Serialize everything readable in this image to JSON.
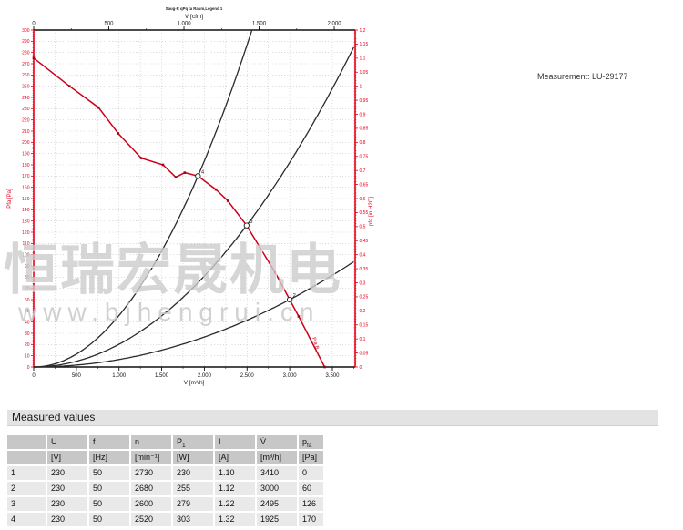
{
  "measurement_label": "Measurement: LU-29177",
  "watermark": {
    "line1": "恒瑞宏晟机电",
    "line2": "www.bjhengrui.cn"
  },
  "chart_data": {
    "type": "line",
    "title_small": "Saug-R qPq ta Raum,Legend 1",
    "curve_label": "Pfa B",
    "colors": {
      "axis_red": "#e3001b",
      "curve_red": "#cc0019",
      "marker_red": "#a50014",
      "black_curve": "#2a2a2a",
      "grid": "#b0b0b0"
    },
    "axes": {
      "top": {
        "label": "V [cfm]",
        "range": [
          0,
          2139
        ],
        "ticks": [
          0,
          500,
          1000,
          1500,
          2000
        ],
        "tick_labels": [
          "0",
          "500",
          "1.000",
          "1.500",
          "2.000"
        ],
        "minor_step": 250
      },
      "bottom": {
        "label": "V [m³/h]",
        "range": [
          0,
          3767
        ],
        "ticks": [
          0,
          500,
          1000,
          1500,
          2000,
          2500,
          3000,
          3500
        ],
        "tick_labels": [
          "0",
          "500",
          "1.000",
          "1.500",
          "2.000",
          "2.500",
          "3.000",
          "3.500"
        ],
        "minor_step": 250
      },
      "left": {
        "label": "Pfa [Pa]",
        "range": [
          0,
          300
        ],
        "step": 10,
        "minor_step": 2
      },
      "right": {
        "label": "pfa [in H2O]",
        "range": [
          0,
          1.2
        ],
        "step": 0.05,
        "minor_step": 0.01,
        "decimal_comma": true
      }
    },
    "grid": {
      "v_step": 250,
      "h_step": 10
    },
    "series": [
      {
        "name": "fan-pressure-curve",
        "type": "measured",
        "points": [
          [
            0,
            275
          ],
          [
            420,
            250
          ],
          [
            760,
            231
          ],
          [
            990,
            208
          ],
          [
            1260,
            186
          ],
          [
            1515,
            180
          ],
          [
            1665,
            169
          ],
          [
            1770,
            173
          ],
          [
            1925,
            170
          ],
          [
            2135,
            158
          ],
          [
            2275,
            148
          ],
          [
            2495,
            126
          ],
          [
            2830,
            84
          ],
          [
            3000,
            60
          ],
          [
            3105,
            45
          ],
          [
            3410,
            0
          ]
        ]
      },
      {
        "name": "system-curve-through-point-4",
        "type": "parabola",
        "through": [
          1925,
          170
        ]
      },
      {
        "name": "system-curve-through-point-3",
        "type": "parabola",
        "through": [
          2495,
          126
        ]
      },
      {
        "name": "system-curve-through-point-2",
        "type": "parabola",
        "through": [
          3000,
          60
        ]
      }
    ],
    "operating_points": [
      {
        "label": "1",
        "v": 3410,
        "p": 0,
        "circle": false
      },
      {
        "label": "2",
        "v": 3000,
        "p": 60,
        "circle": true
      },
      {
        "label": "3",
        "v": 2495,
        "p": 126,
        "circle": true
      },
      {
        "label": "4",
        "v": 1925,
        "p": 170,
        "circle": true
      }
    ]
  },
  "table": {
    "title": "Measured values",
    "sym_main": [
      "",
      "U",
      "f",
      "n",
      "P",
      "I",
      "V̇",
      "p"
    ],
    "sym_sub": [
      "",
      "",
      "",
      "",
      "1",
      "",
      "",
      "fa"
    ],
    "units": [
      "",
      "[V]",
      "[Hz]",
      "[min⁻¹]",
      "[W]",
      "[A]",
      "[m³/h]",
      "[Pa]"
    ],
    "rows": [
      [
        "1",
        "230",
        "50",
        "2730",
        "230",
        "1.10",
        "3410",
        "0"
      ],
      [
        "2",
        "230",
        "50",
        "2680",
        "255",
        "1.12",
        "3000",
        "60"
      ],
      [
        "3",
        "230",
        "50",
        "2600",
        "279",
        "1.22",
        "2495",
        "126"
      ],
      [
        "4",
        "230",
        "50",
        "2520",
        "303",
        "1.32",
        "1925",
        "170"
      ]
    ]
  }
}
